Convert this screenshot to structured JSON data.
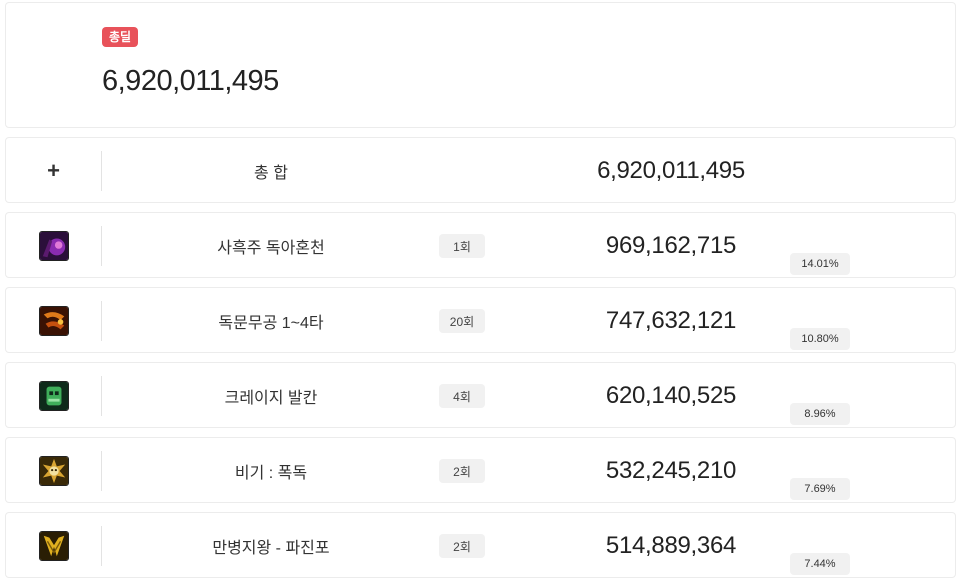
{
  "header": {
    "badge_label": "총딜",
    "total_damage": "6,920,011,495"
  },
  "summary": {
    "expand_symbol": "+",
    "label": "총 합",
    "value": "6,920,011,495"
  },
  "skills": [
    {
      "icon": "poison-brew-icon",
      "name": "사흑주 독아혼천",
      "count": "1회",
      "damage": "969,162,715",
      "percent": "14.01%"
    },
    {
      "icon": "fire-claw-icon",
      "name": "독문무공 1~4타",
      "count": "20회",
      "damage": "747,632,121",
      "percent": "10.80%"
    },
    {
      "icon": "green-mask-icon",
      "name": "크레이지 발칸",
      "count": "4회",
      "damage": "620,140,525",
      "percent": "8.96%"
    },
    {
      "icon": "skull-sun-icon",
      "name": "비기 : 폭독",
      "count": "2회",
      "damage": "532,245,210",
      "percent": "7.69%"
    },
    {
      "icon": "golden-fangs-icon",
      "name": "만병지왕 - 파진포",
      "count": "2회",
      "damage": "514,889,364",
      "percent": "7.44%"
    }
  ]
}
